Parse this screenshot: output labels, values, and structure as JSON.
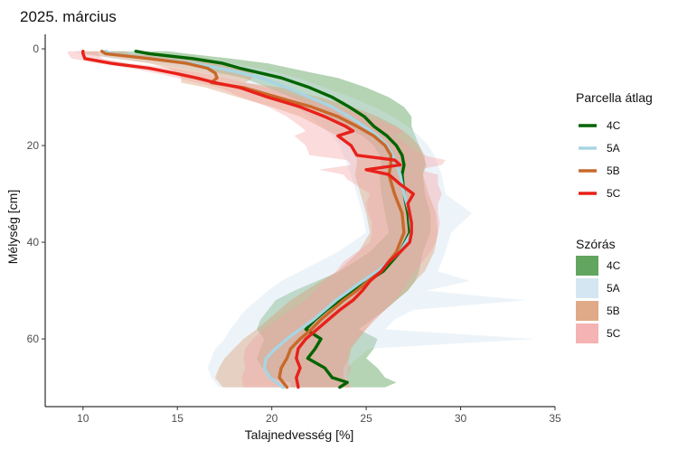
{
  "chart_data": {
    "type": "line",
    "title": "2025. március",
    "xlabel": "Talajnedvesség [%]",
    "ylabel": "Mélység [cm]",
    "xlim": [
      8,
      35
    ],
    "ylim": [
      -3,
      74
    ],
    "y_reversed": true,
    "x_ticks": [
      10,
      15,
      20,
      25,
      30,
      35
    ],
    "y_ticks": [
      0,
      20,
      40,
      60
    ],
    "grid": false,
    "legend_mean_title": "Parcella átlag",
    "legend_sd_title": "Szórás",
    "series": [
      {
        "name": "4C",
        "color": "#006400",
        "band_color": "#3a8f3a",
        "depth": [
          0.5,
          1,
          2,
          3,
          4,
          5,
          6,
          8,
          10,
          12,
          14,
          16,
          18,
          20,
          22,
          24,
          26,
          30,
          34,
          38,
          42,
          46,
          48,
          50,
          52,
          54,
          56,
          58,
          60,
          62,
          64,
          66,
          68,
          69,
          70
        ],
        "values": [
          12.8,
          13.5,
          15.8,
          17.4,
          18.3,
          19.4,
          20.5,
          22.0,
          23.2,
          24.1,
          24.9,
          25.4,
          26.1,
          26.6,
          26.9,
          27.0,
          26.9,
          27.0,
          27.2,
          27.3,
          26.8,
          25.9,
          25.1,
          24.3,
          23.6,
          22.9,
          22.3,
          21.8,
          22.6,
          22.3,
          21.9,
          22.8,
          23.2,
          24.0,
          23.6
        ],
        "sd_low": [
          11.0,
          11.8,
          13.0,
          15.0,
          16.2,
          17.2,
          18.5,
          19.8,
          21.0,
          22.2,
          23.0,
          23.8,
          24.8,
          25.4,
          25.7,
          25.8,
          25.7,
          25.8,
          26.0,
          26.2,
          25.2,
          23.6,
          22.4,
          21.2,
          20.2,
          19.8,
          19.4,
          19.2,
          19.6,
          19.4,
          19.2,
          19.5,
          20.0,
          21.0,
          21.0
        ],
        "sd_high": [
          14.5,
          15.5,
          17.8,
          19.8,
          21.0,
          22.2,
          23.5,
          25.0,
          26.2,
          27.0,
          27.4,
          27.4,
          27.6,
          27.8,
          28.0,
          28.2,
          28.0,
          28.1,
          28.4,
          28.4,
          28.0,
          27.8,
          27.6,
          27.2,
          26.6,
          26.0,
          25.3,
          24.6,
          25.6,
          25.4,
          25.0,
          25.6,
          26.0,
          26.6,
          26.0
        ]
      },
      {
        "name": "5A",
        "color": "#a8d5e2",
        "band_color": "#cfe3ef",
        "depth": [
          0.5,
          1,
          2,
          3,
          4,
          5,
          6,
          8,
          10,
          12,
          14,
          16,
          18,
          20,
          22,
          24,
          26,
          30,
          34,
          38,
          42,
          46,
          48,
          50,
          52,
          54,
          56,
          58,
          60,
          62,
          64,
          66,
          68,
          70
        ],
        "values": [
          11.2,
          11.5,
          13.5,
          15.8,
          17.2,
          18.4,
          19.4,
          20.8,
          22.0,
          23.2,
          24.1,
          24.9,
          25.6,
          26.1,
          26.4,
          26.6,
          26.8,
          27.0,
          27.3,
          27.4,
          26.8,
          25.6,
          24.8,
          24.1,
          23.4,
          22.8,
          22.2,
          21.5,
          20.8,
          20.2,
          19.7,
          19.6,
          19.9,
          20.6
        ],
        "sd_low": [
          9.5,
          9.8,
          11.5,
          13.8,
          15.2,
          16.4,
          17.4,
          18.8,
          20.0,
          21.2,
          22.0,
          22.6,
          23.2,
          23.6,
          23.8,
          24.0,
          24.2,
          24.5,
          24.8,
          25.0,
          23.5,
          21.5,
          20.5,
          19.8,
          19.2,
          18.6,
          18.2,
          17.8,
          17.5,
          17.0,
          16.8,
          16.6,
          16.8,
          17.2
        ],
        "sd_high": [
          13.0,
          13.4,
          15.5,
          17.8,
          19.2,
          20.4,
          21.4,
          22.8,
          24.2,
          25.4,
          26.4,
          27.2,
          27.8,
          28.3,
          28.6,
          28.8,
          29.0,
          29.2,
          30.6,
          29.5,
          29.2,
          28.8,
          30.5,
          28.2,
          33.5,
          27.5,
          26.5,
          26.0,
          34.0,
          25.2,
          24.5,
          24.0,
          24.0,
          24.2
        ]
      },
      {
        "name": "5B",
        "color": "#c8692a",
        "band_color": "#d8956a",
        "depth": [
          0.5,
          1,
          2,
          3,
          4,
          5,
          6,
          7,
          8,
          10,
          12,
          14,
          16,
          18,
          20,
          22,
          24,
          26,
          30,
          34,
          38,
          42,
          46,
          48,
          50,
          52,
          54,
          56,
          58,
          60,
          62,
          64,
          66,
          68,
          70
        ],
        "values": [
          11.0,
          11.2,
          13.5,
          15.5,
          16.6,
          17.0,
          17.1,
          16.8,
          18.5,
          20.3,
          22.1,
          23.5,
          24.5,
          25.4,
          26.0,
          26.3,
          26.3,
          26.2,
          26.5,
          26.9,
          27.0,
          26.6,
          25.8,
          25.1,
          24.5,
          23.8,
          23.2,
          22.6,
          22.1,
          21.5,
          21.0,
          20.8,
          20.5,
          20.4,
          20.8
        ],
        "sd_low": [
          9.8,
          10.0,
          11.8,
          13.5,
          14.5,
          15.0,
          15.2,
          15.2,
          16.5,
          18.2,
          20.0,
          21.5,
          22.5,
          23.5,
          24.2,
          24.5,
          24.5,
          24.4,
          24.7,
          25.0,
          25.2,
          24.6,
          23.5,
          22.6,
          21.8,
          21.0,
          20.4,
          19.8,
          19.2,
          18.5,
          18.0,
          17.5,
          17.2,
          17.0,
          17.4
        ],
        "sd_high": [
          12.2,
          12.5,
          15.2,
          17.5,
          18.6,
          19.0,
          19.0,
          18.6,
          20.5,
          22.5,
          24.3,
          25.6,
          26.6,
          27.3,
          27.8,
          28.1,
          28.1,
          28.0,
          28.3,
          28.7,
          28.8,
          28.6,
          28.1,
          27.6,
          27.2,
          26.6,
          26.0,
          25.4,
          25.0,
          24.6,
          24.2,
          24.1,
          23.8,
          23.8,
          24.2
        ]
      },
      {
        "name": "5C",
        "color": "#e8211a",
        "band_color": "#f4a0a0",
        "depth": [
          0.5,
          1,
          2,
          3,
          4,
          5,
          6,
          7,
          8,
          10,
          12,
          14,
          16,
          17,
          18,
          20,
          22,
          23,
          24,
          25,
          26,
          27,
          28,
          30,
          32,
          34,
          36,
          38,
          40,
          42,
          44,
          46,
          48,
          50,
          52,
          54,
          56,
          58,
          60,
          62,
          64,
          66,
          68,
          70
        ],
        "values": [
          10.0,
          10.0,
          10.1,
          11.5,
          13.5,
          14.8,
          16.0,
          17.0,
          18.3,
          19.8,
          21.5,
          22.8,
          23.9,
          24.3,
          23.5,
          24.2,
          24.5,
          26.5,
          26.8,
          25.0,
          26.2,
          26.5,
          26.8,
          27.5,
          27.2,
          27.3,
          27.4,
          27.4,
          27.3,
          26.8,
          26.2,
          25.8,
          25.2,
          24.8,
          24.3,
          23.6,
          23.0,
          22.4,
          21.8,
          21.4,
          21.3,
          21.5,
          21.3,
          21.4
        ],
        "sd_low": [
          9.2,
          9.2,
          9.4,
          10.8,
          12.5,
          13.8,
          15.0,
          16.0,
          17.2,
          18.4,
          19.8,
          20.8,
          21.5,
          21.8,
          21.2,
          21.8,
          22.0,
          24.0,
          24.2,
          22.5,
          23.8,
          24.0,
          24.4,
          25.2,
          25.0,
          25.1,
          25.3,
          25.3,
          25.2,
          24.5,
          23.8,
          23.4,
          22.8,
          22.3,
          21.8,
          21.0,
          20.3,
          19.6,
          19.0,
          18.6,
          18.5,
          18.6,
          18.4,
          18.5
        ],
        "sd_high": [
          10.8,
          10.8,
          11.0,
          12.5,
          14.8,
          16.2,
          17.5,
          18.5,
          19.8,
          21.5,
          23.5,
          25.0,
          26.5,
          27.0,
          26.5,
          27.3,
          28.0,
          29.2,
          29.0,
          27.8,
          28.8,
          28.8,
          28.8,
          29.0,
          28.8,
          28.8,
          28.9,
          28.8,
          28.7,
          28.4,
          28.0,
          27.6,
          27.2,
          26.9,
          26.5,
          26.0,
          25.5,
          25.0,
          24.5,
          24.1,
          24.0,
          24.2,
          24.0,
          24.2
        ]
      }
    ]
  }
}
